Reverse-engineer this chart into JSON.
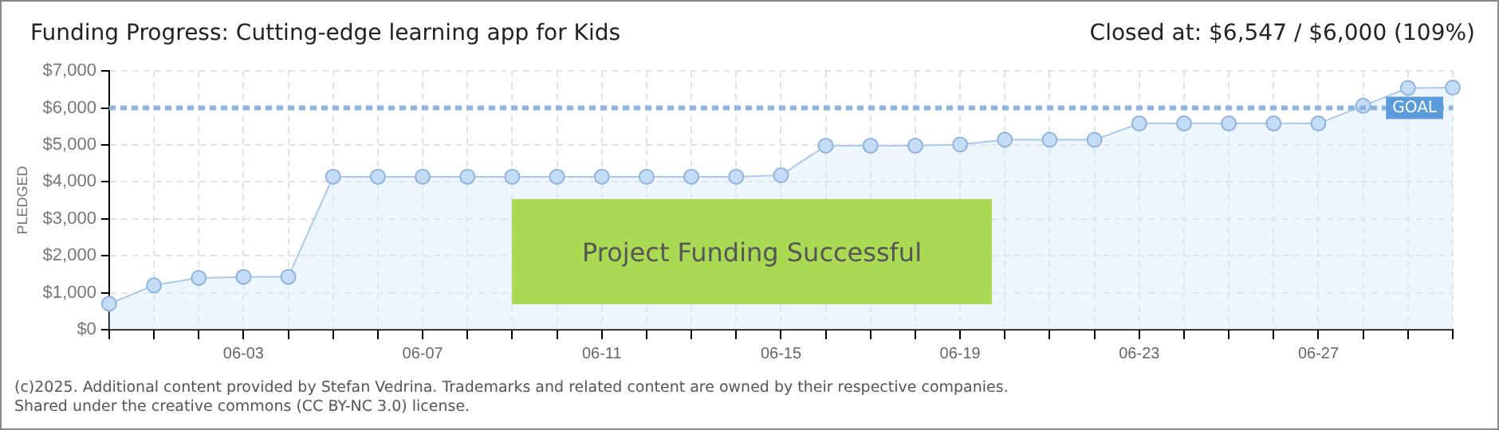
{
  "chart_data": {
    "type": "area",
    "title": "Funding Progress: Cutting-edge learning app for Kids",
    "ylabel": "PLEDGED",
    "categories": [
      null,
      null,
      null,
      "06-03",
      null,
      null,
      null,
      "06-07",
      null,
      null,
      null,
      "06-11",
      null,
      null,
      null,
      "06-15",
      null,
      null,
      null,
      "06-19",
      null,
      null,
      null,
      "06-23",
      null,
      null,
      null,
      "06-27",
      null,
      null,
      null
    ],
    "series": [
      {
        "color": "#a9c9ef",
        "values": [
          700,
          1200,
          1400,
          1430,
          1430,
          4140,
          4140,
          4140,
          4140,
          4140,
          4140,
          4140,
          4140,
          4140,
          4140,
          4180,
          4980,
          4980,
          4980,
          5010,
          5140,
          5140,
          5140,
          5580,
          5580,
          5580,
          5580,
          5580,
          6060,
          6540,
          6550
        ]
      }
    ],
    "ylim": [
      0,
      7000
    ],
    "yticks": [
      {
        "value": 0,
        "label": "$0"
      },
      {
        "value": 1000,
        "label": "$1,000"
      },
      {
        "value": 2000,
        "label": "$2,000"
      },
      {
        "value": 3000,
        "label": "$3,000"
      },
      {
        "value": 4000,
        "label": "$4,000"
      },
      {
        "value": 5000,
        "label": "$5,000"
      },
      {
        "value": 6000,
        "label": "$6,000"
      },
      {
        "value": 7000,
        "label": "$7,000"
      }
    ],
    "ref_lines": [
      {
        "axis": "y",
        "value": 6000,
        "label": "GOAL",
        "color": "#8db3e0",
        "line_style": "dashed"
      }
    ],
    "annotations": [
      "Closed at: $6,547 / $6,000 (109%)",
      "Project Funding Successful",
      "(c)2025. Additional content provided by Stefan Vedrina. Trademarks and related content are owned by their respective companies.",
      "Shared under the creative commons (CC BY-NC 3.0) license."
    ],
    "grid": true,
    "marker": "circle",
    "legend": false
  }
}
